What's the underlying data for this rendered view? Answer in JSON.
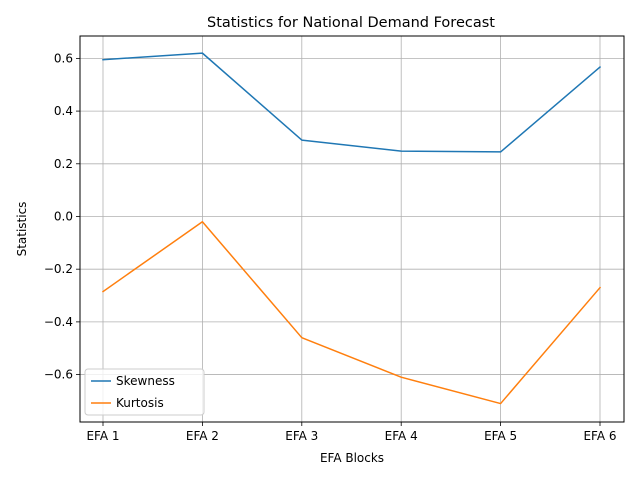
{
  "chart_data": {
    "type": "line",
    "title": "Statistics for National Demand Forecast",
    "xlabel": "EFA Blocks",
    "ylabel": "Statistics",
    "categories": [
      "EFA 1",
      "EFA 2",
      "EFA 3",
      "EFA 4",
      "EFA 5",
      "EFA 6"
    ],
    "ylim": [
      -0.78,
      0.685
    ],
    "yticks": [
      0.6,
      0.4,
      0.2,
      0.0,
      -0.2,
      -0.4,
      -0.6
    ],
    "ytick_labels": [
      "0.6",
      "0.4",
      "0.2",
      "0.0",
      "−0.2",
      "−0.4",
      "−0.6"
    ],
    "grid": true,
    "legend_position": "lower-left",
    "series": [
      {
        "name": "Skewness",
        "color": "#1f77b4",
        "values": [
          0.595,
          0.62,
          0.29,
          0.248,
          0.245,
          0.567
        ]
      },
      {
        "name": "Kurtosis",
        "color": "#ff7f0e",
        "values": [
          -0.285,
          -0.02,
          -0.46,
          -0.61,
          -0.71,
          -0.27
        ]
      }
    ]
  }
}
